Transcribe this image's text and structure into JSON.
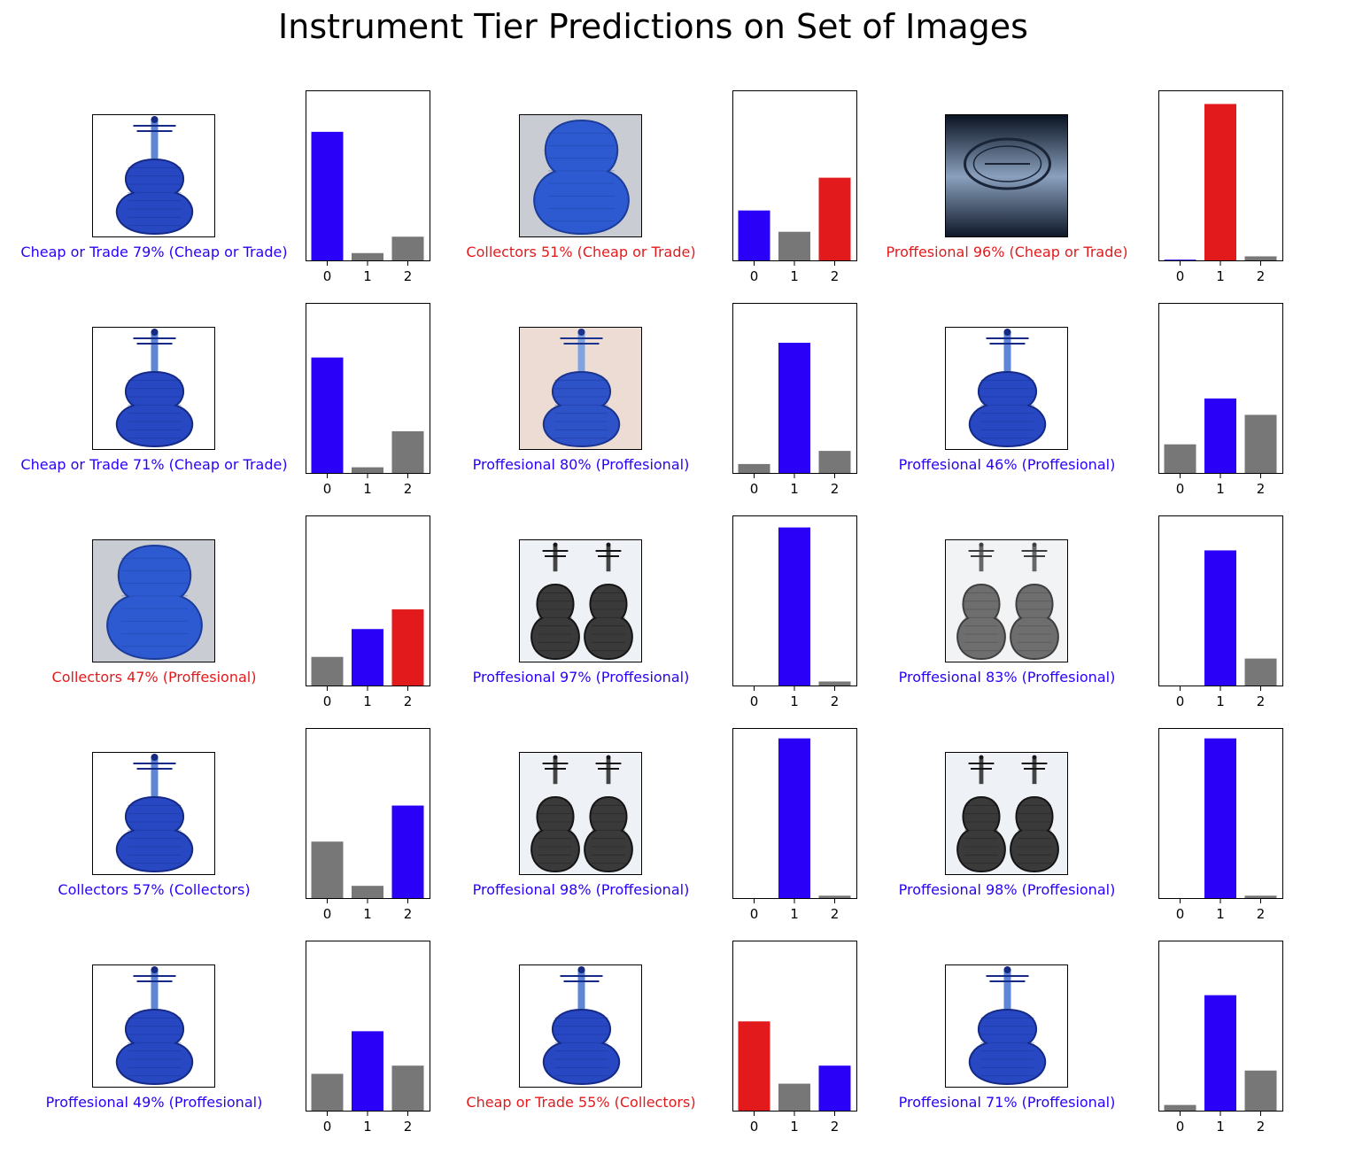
{
  "title": "Instrument Tier Predictions on Set of Images",
  "colors": {
    "correct": "#2b00f7",
    "wrong": "#e31a1c",
    "other": "#777777"
  },
  "chart_data": {
    "type": "bar",
    "categories": [
      "0",
      "1",
      "2"
    ],
    "ylim": [
      0,
      1
    ],
    "grid": false,
    "panels": [
      {
        "caption": "Cheap or Trade 79% (Cheap or Trade)",
        "predicted": 0,
        "true": 0,
        "values": [
          0.79,
          0.05,
          0.15
        ],
        "image": "violin-blue-white"
      },
      {
        "caption": "Collectors 51% (Cheap or Trade)",
        "predicted": 2,
        "true": 0,
        "values": [
          0.31,
          0.18,
          0.51
        ],
        "image": "violin-back-blue-grey"
      },
      {
        "caption": "Proffesional 96% (Cheap or Trade)",
        "predicted": 1,
        "true": 0,
        "values": [
          0.01,
          0.96,
          0.03
        ],
        "image": "label-stamp-dark"
      },
      {
        "caption": "Cheap or Trade 71% (Cheap or Trade)",
        "predicted": 0,
        "true": 0,
        "values": [
          0.71,
          0.04,
          0.26
        ],
        "image": "violin-blue-white"
      },
      {
        "caption": "Proffesional 80% (Proffesional)",
        "predicted": 1,
        "true": 1,
        "values": [
          0.06,
          0.8,
          0.14
        ],
        "image": "violin-blue-peach"
      },
      {
        "caption": "Proffesional 46% (Proffesional)",
        "predicted": 1,
        "true": 1,
        "values": [
          0.18,
          0.46,
          0.36
        ],
        "image": "violin-blue-white"
      },
      {
        "caption": "Collectors 47% (Proffesional)",
        "predicted": 2,
        "true": 1,
        "values": [
          0.18,
          0.35,
          0.47
        ],
        "image": "violin-back-blue-grey"
      },
      {
        "caption": "Proffesional 97% (Proffesional)",
        "predicted": 1,
        "true": 1,
        "values": [
          0.0,
          0.97,
          0.03
        ],
        "image": "two-violins-dark"
      },
      {
        "caption": "Proffesional 83% (Proffesional)",
        "predicted": 1,
        "true": 1,
        "values": [
          0.0,
          0.83,
          0.17
        ],
        "image": "two-violins-grey"
      },
      {
        "caption": "Collectors 57% (Collectors)",
        "predicted": 2,
        "true": 2,
        "values": [
          0.35,
          0.08,
          0.57
        ],
        "image": "violin-blue-white"
      },
      {
        "caption": "Proffesional 98% (Proffesional)",
        "predicted": 1,
        "true": 1,
        "values": [
          0.0,
          0.98,
          0.02
        ],
        "image": "two-violins-dark"
      },
      {
        "caption": "Proffesional 98% (Proffesional)",
        "predicted": 1,
        "true": 1,
        "values": [
          0.0,
          0.98,
          0.02
        ],
        "image": "two-violins-dark"
      },
      {
        "caption": "Proffesional 49% (Proffesional)",
        "predicted": 1,
        "true": 1,
        "values": [
          0.23,
          0.49,
          0.28
        ],
        "image": "violin-blue-white"
      },
      {
        "caption": "Cheap or Trade 55% (Collectors)",
        "predicted": 0,
        "true": 2,
        "values": [
          0.55,
          0.17,
          0.28
        ],
        "image": "violin-blue-white"
      },
      {
        "caption": "Proffesional 71% (Proffesional)",
        "predicted": 1,
        "true": 1,
        "values": [
          0.04,
          0.71,
          0.25
        ],
        "image": "violin-blue-white"
      }
    ]
  }
}
